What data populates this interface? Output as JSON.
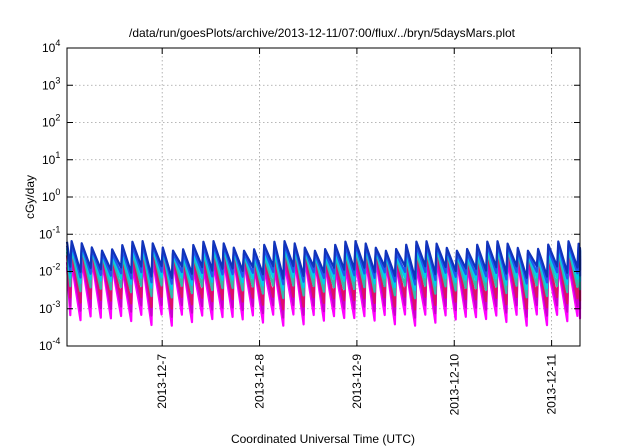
{
  "chart_data": {
    "type": "line",
    "title": "/data/run/goesPlots/archive/2013-12-11/07:00/flux/../bryn/5daysMars.plot",
    "xlabel": "Coordinated Universal Time (UTC)",
    "ylabel": "cGy/day",
    "yscale": "log",
    "ylim": [
      0.0001,
      10000
    ],
    "xlim": [
      "2013-12-06T00:32",
      "2013-12-11T07:00"
    ],
    "grid": true,
    "y_ticks": [
      {
        "value": 0.0001,
        "base": "10",
        "exp": "-4"
      },
      {
        "value": 0.001,
        "base": "10",
        "exp": "-3"
      },
      {
        "value": 0.01,
        "base": "10",
        "exp": "-2"
      },
      {
        "value": 0.1,
        "base": "10",
        "exp": "-1"
      },
      {
        "value": 1,
        "base": "10",
        "exp": "0"
      },
      {
        "value": 10,
        "base": "10",
        "exp": "1"
      },
      {
        "value": 100,
        "base": "10",
        "exp": "2"
      },
      {
        "value": 1000,
        "base": "10",
        "exp": "3"
      },
      {
        "value": 10000,
        "base": "10",
        "exp": "4"
      }
    ],
    "x_ticks": [
      {
        "value": "2013-12-07T00:00",
        "label": "2013-12-7"
      },
      {
        "value": "2013-12-08T00:00",
        "label": "2013-12-8"
      },
      {
        "value": "2013-12-09T00:00",
        "label": "2013-12-9"
      },
      {
        "value": "2013-12-10T00:00",
        "label": "2013-12-10"
      },
      {
        "value": "2013-12-11T00:00",
        "label": "2013-12-11"
      }
    ],
    "sawtooth_period_hours": 2.5,
    "series": [
      {
        "color": "#ff00ff",
        "peak": 0.02,
        "trough": 0.0005
      },
      {
        "color": "#cc00cc",
        "peak": 0.025,
        "trough": 0.0009
      },
      {
        "color": "#dd1166",
        "peak": 0.035,
        "trough": 0.0015
      },
      {
        "color": "#33bbaa",
        "peak": 0.04,
        "trough": 0.003
      },
      {
        "color": "#00ccee",
        "peak": 0.045,
        "trough": 0.005
      },
      {
        "color": "#2255ee",
        "peak": 0.05,
        "trough": 0.007
      },
      {
        "color": "#1133bb",
        "peak": 0.06,
        "trough": 0.01
      }
    ]
  }
}
